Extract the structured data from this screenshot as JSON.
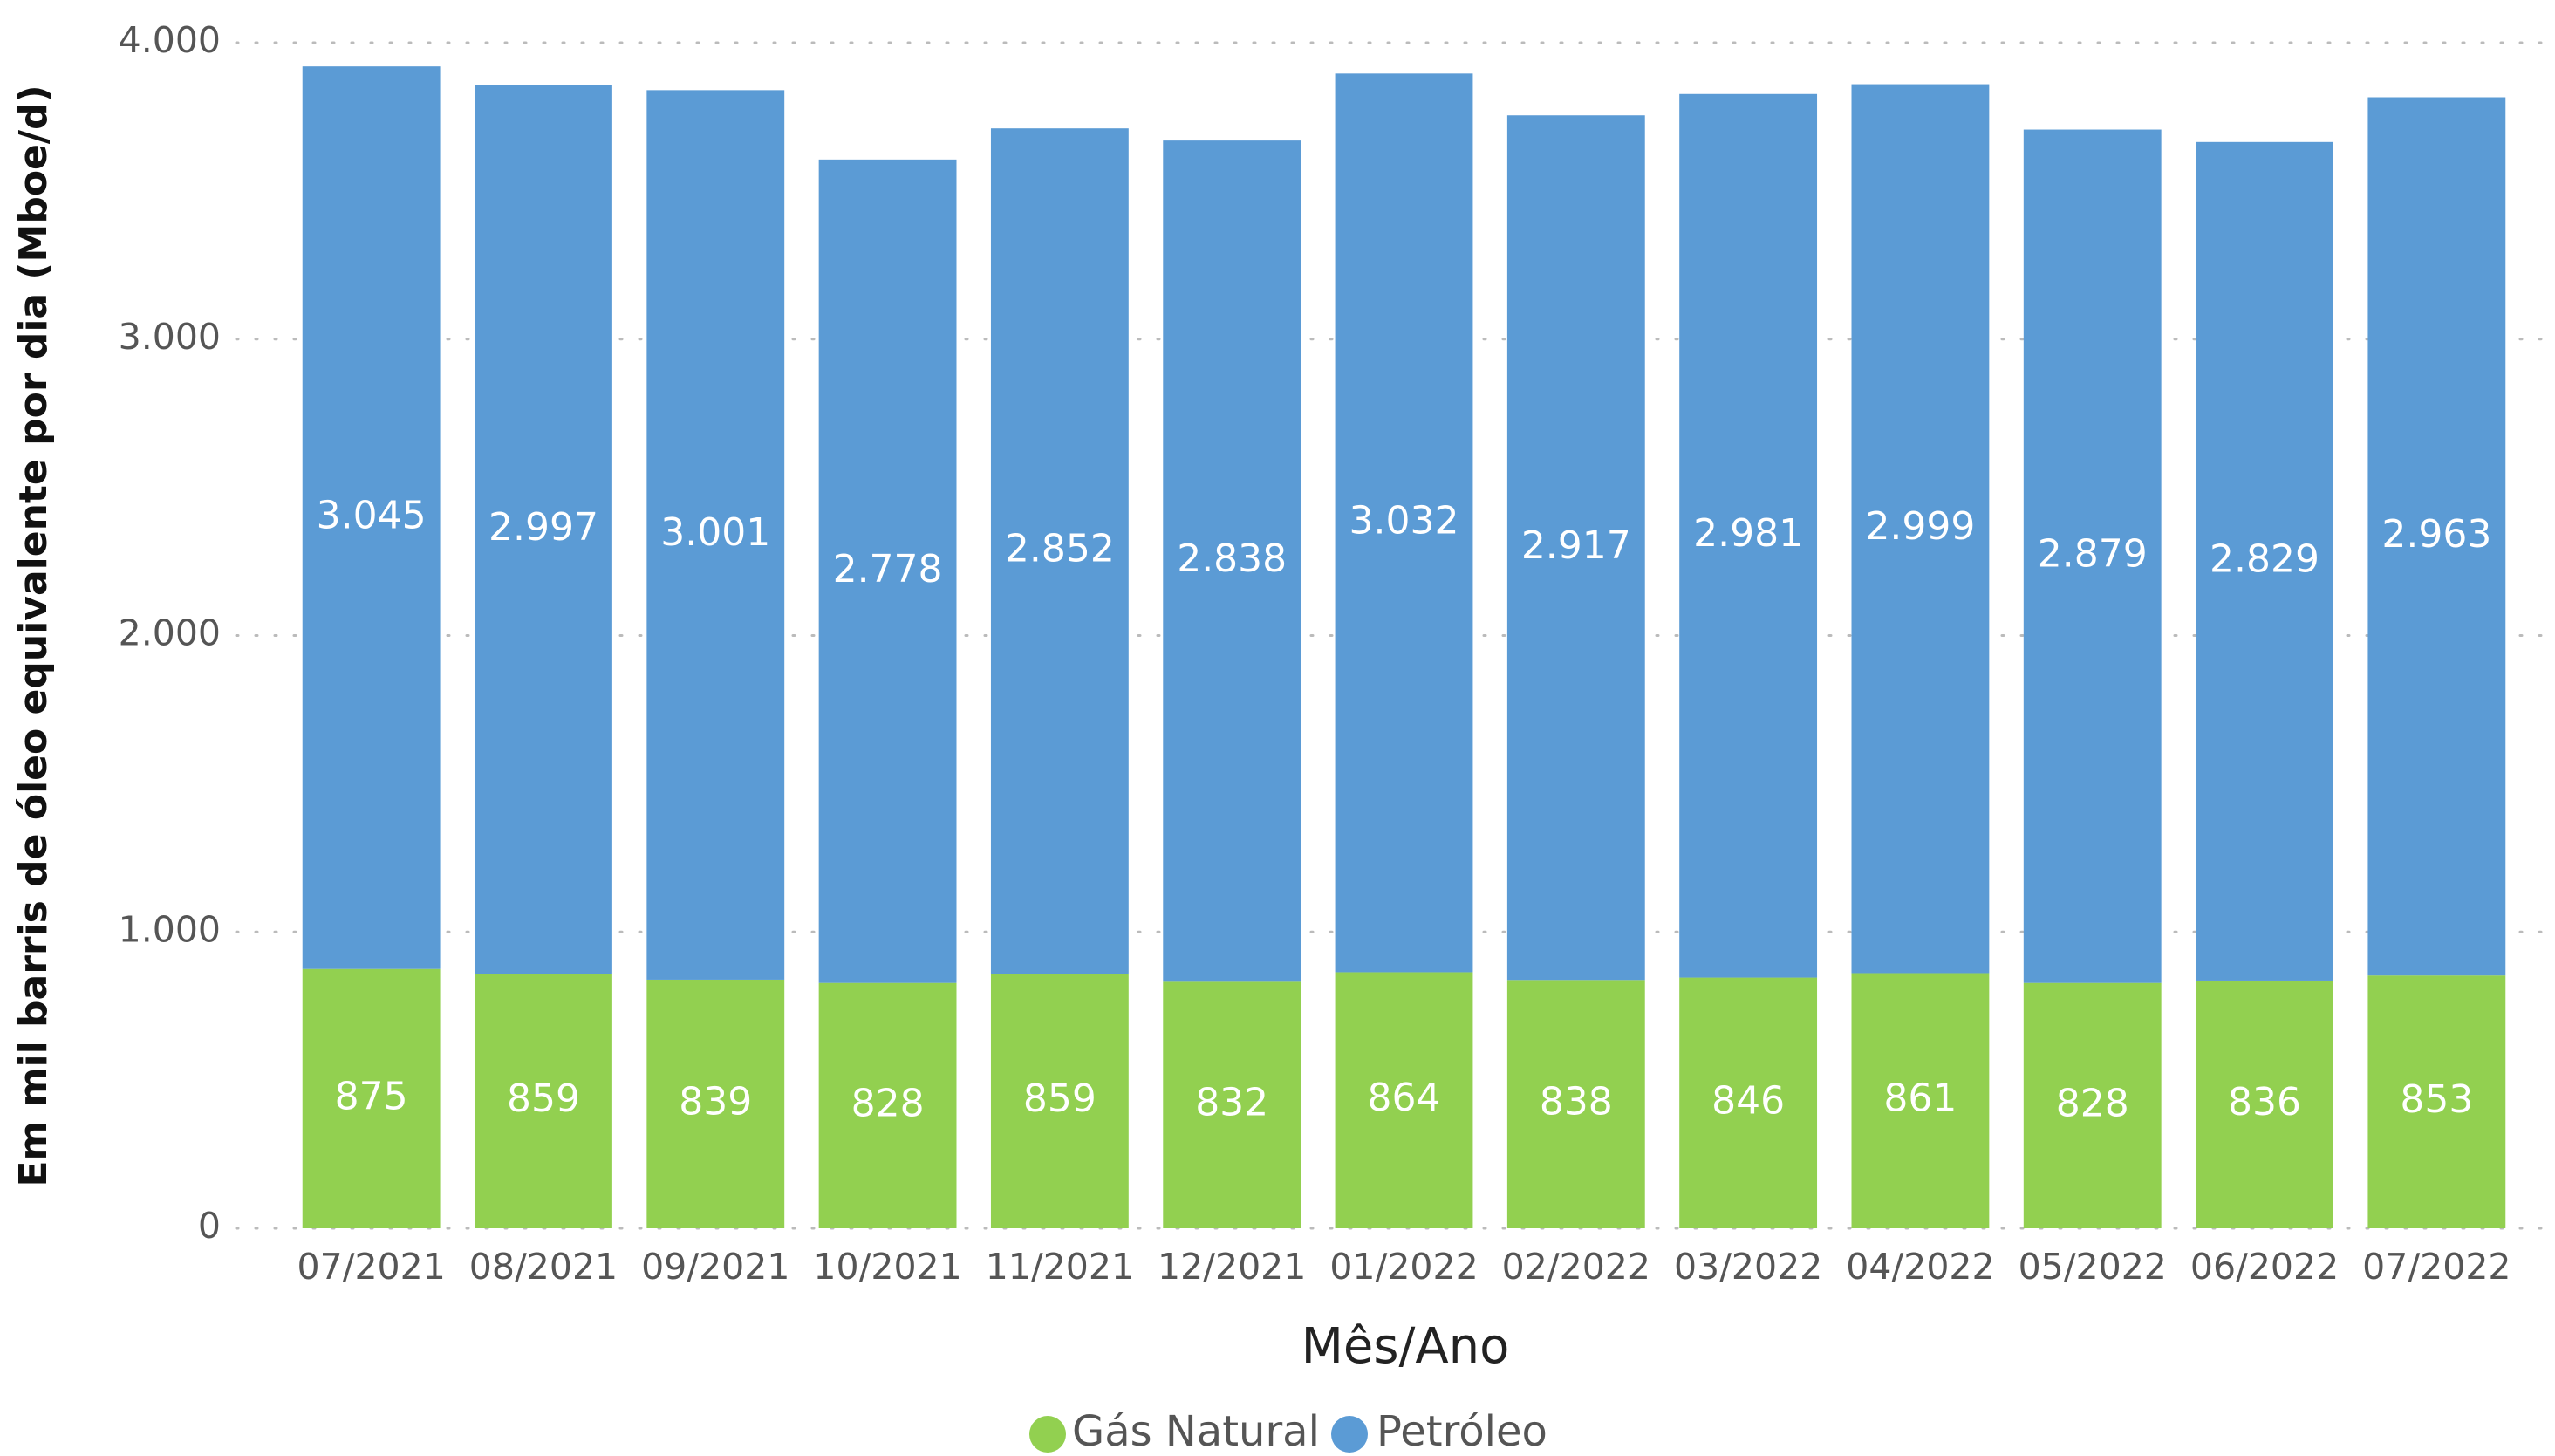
{
  "chart_data": {
    "type": "stacked_bar",
    "x_label": "Mês/Ano",
    "y_label": "Em mil barris de óleo equivalente por dia (Mboe/d)",
    "categories": [
      "07/2021",
      "08/2021",
      "09/2021",
      "10/2021",
      "11/2021",
      "12/2021",
      "01/2022",
      "02/2022",
      "03/2022",
      "04/2022",
      "05/2022",
      "06/2022",
      "07/2022"
    ],
    "series": [
      {
        "name": "Gás Natural",
        "color": "#92d050",
        "values": [
          875,
          859,
          839,
          828,
          859,
          832,
          864,
          838,
          846,
          861,
          828,
          836,
          853
        ]
      },
      {
        "name": "Petróleo",
        "color": "#5b9bd5",
        "values": [
          3045,
          2997,
          3001,
          2778,
          2852,
          2838,
          3032,
          2917,
          2981,
          2999,
          2879,
          2829,
          2963
        ],
        "value_labels": [
          "3.045",
          "2.997",
          "3.001",
          "2.778",
          "2.852",
          "2.838",
          "3.032",
          "2.917",
          "2.981",
          "2.999",
          "2.879",
          "2.829",
          "2.963"
        ]
      }
    ],
    "ylim": [
      0,
      4000
    ],
    "yticks": [
      0,
      {
        "value": 1000,
        "label": "1.000"
      },
      {
        "value": 2000,
        "label": "2.000"
      },
      {
        "value": 3000,
        "label": "3.000"
      },
      {
        "value": 4000,
        "label": "4.000"
      }
    ],
    "grid": true,
    "legend": "bottom"
  }
}
